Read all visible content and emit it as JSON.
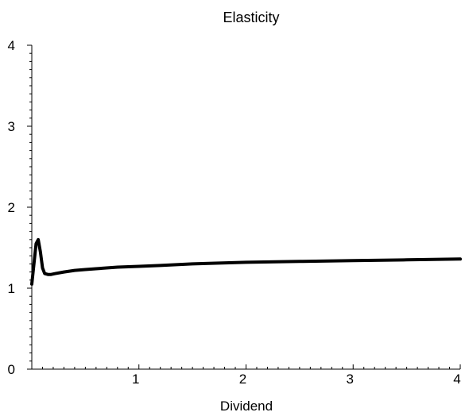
{
  "chart_data": {
    "type": "line",
    "title": "Elasticity",
    "xlabel": "Dividend",
    "ylabel": "",
    "xlim": [
      0,
      4
    ],
    "ylim": [
      0,
      4
    ],
    "grid": false,
    "x_ticks": [
      1,
      2,
      3,
      4
    ],
    "x_tick_labels": [
      "1",
      "2",
      "3",
      "4"
    ],
    "y_ticks": [
      0,
      1,
      2,
      3,
      4
    ],
    "y_tick_labels": [
      "0",
      "1",
      "2",
      "3",
      "4"
    ],
    "series": [
      {
        "color": "#000000",
        "x": [
          0.0,
          0.02,
          0.04,
          0.06,
          0.08,
          0.1,
          0.12,
          0.15,
          0.18,
          0.22,
          0.3,
          0.4,
          0.5,
          0.6,
          0.8,
          1.0,
          1.2,
          1.5,
          2.0,
          2.5,
          3.0,
          3.5,
          4.0
        ],
        "y": [
          1.05,
          1.3,
          1.55,
          1.6,
          1.45,
          1.25,
          1.18,
          1.17,
          1.17,
          1.18,
          1.2,
          1.22,
          1.23,
          1.24,
          1.26,
          1.27,
          1.28,
          1.3,
          1.32,
          1.33,
          1.34,
          1.35,
          1.36
        ]
      }
    ]
  }
}
